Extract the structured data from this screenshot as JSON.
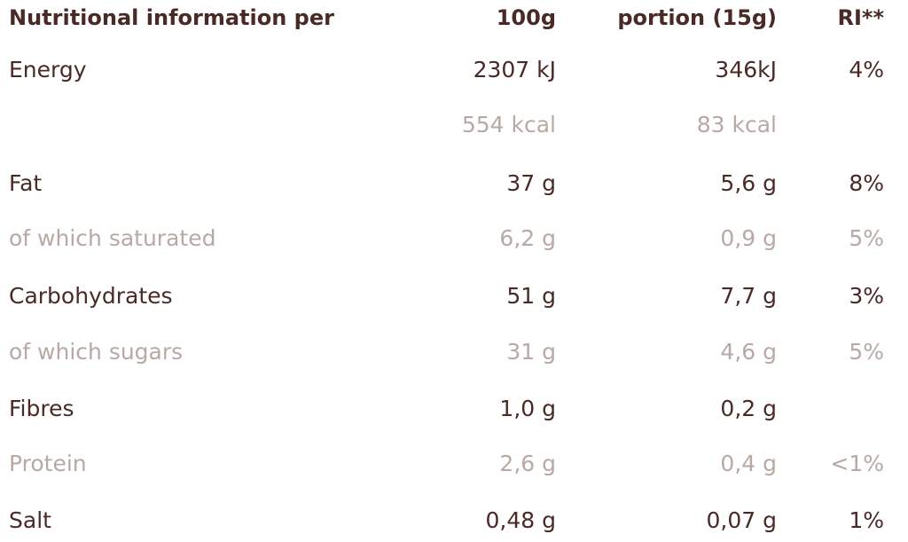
{
  "table": {
    "header": [
      "Nutritional information per",
      "100g",
      "portion (15g)",
      "RI**"
    ],
    "rows": [
      [
        "Energy",
        "2307 kJ",
        "346kJ",
        "4%"
      ],
      [
        null,
        "554 kcal",
        "83 kcal",
        null
      ],
      [
        "Fat",
        "37 g",
        "5,6 g",
        "8%"
      ],
      [
        "of which saturated",
        "6,2 g",
        "0,9 g",
        "5%"
      ],
      [
        "Carbohydrates",
        "51 g",
        "7,7 g",
        "3%"
      ],
      [
        "of which sugars",
        "31 g",
        "4,6 g",
        "5%"
      ],
      [
        "Fibres",
        "1,0 g",
        "0,2 g",
        null
      ],
      [
        "Protein",
        "2,6 g",
        "0,4 g",
        "<1%"
      ],
      [
        "Salt",
        "0,48 g",
        "0,07 g",
        "1%"
      ]
    ]
  }
}
